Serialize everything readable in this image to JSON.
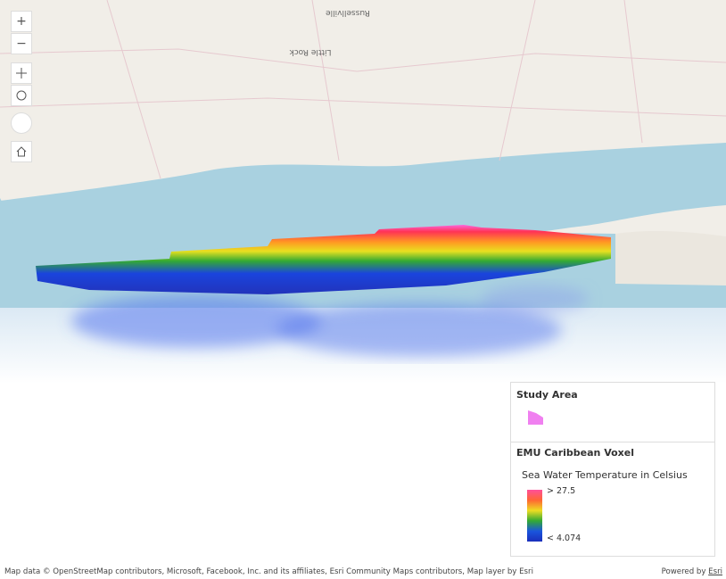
{
  "map": {
    "labels": [
      "Russellville",
      "Little Rock"
    ]
  },
  "controls": {
    "zoom_in": "+",
    "zoom_out": "−"
  },
  "legend": {
    "layers": [
      {
        "title": "Study Area"
      },
      {
        "title": "EMU Caribbean Voxel",
        "field": "Sea Water Temperature in Celsius",
        "max_label": "> 27.5",
        "min_label": "< 4.074"
      }
    ]
  },
  "footer": {
    "attribution": "Map data © OpenStreetMap contributors, Microsoft, Facebook, Inc. and its affiliates, Esri Community Maps contributors, Map layer by Esri",
    "powered_by": "Powered by",
    "esri": "Esri"
  }
}
